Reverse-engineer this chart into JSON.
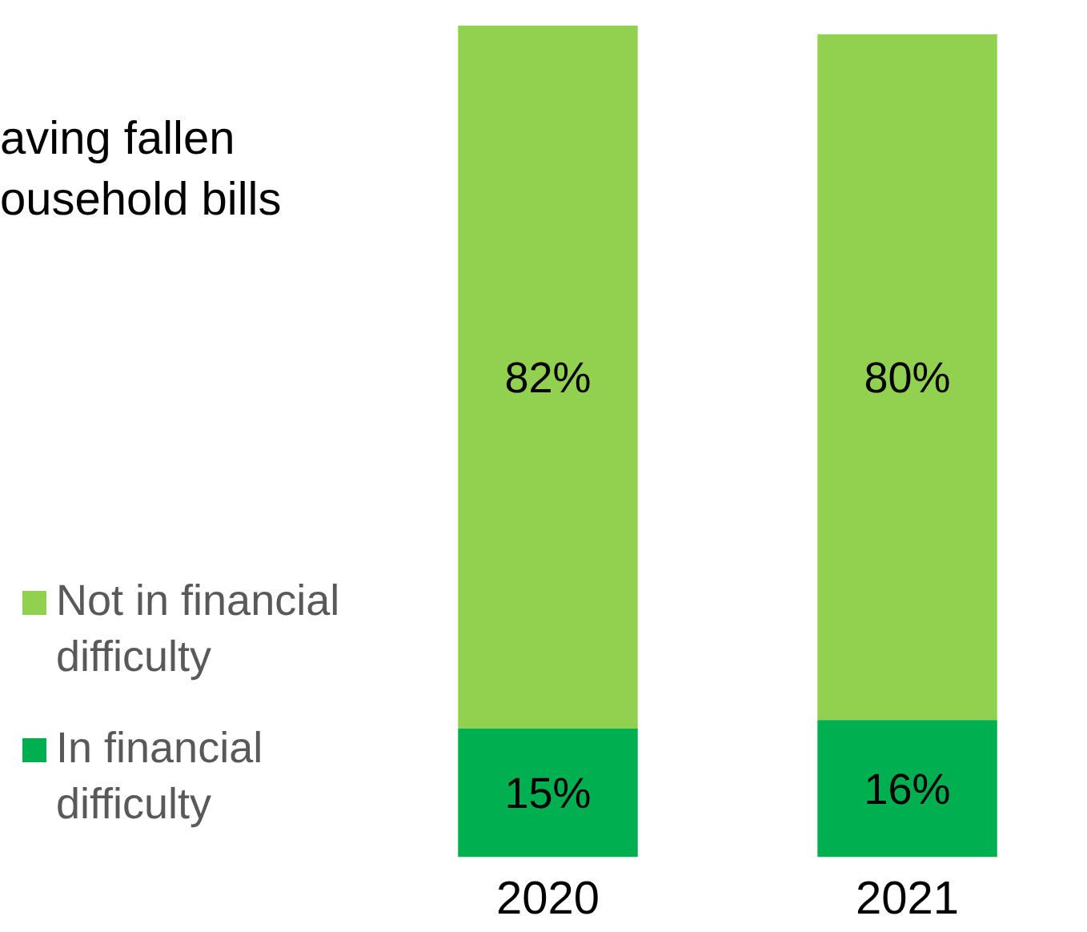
{
  "chart_data": {
    "type": "bar",
    "title": "aving fallen\nousehold bills",
    "categories": [
      "2020",
      "2021"
    ],
    "stacked": true,
    "legend": "left",
    "series": [
      {
        "name": "In financial difficulty",
        "color": "#00b050",
        "values": [
          15,
          16
        ],
        "value_labels": [
          "15%",
          "16%"
        ]
      },
      {
        "name": "Not in financial difficulty",
        "color": "#92d050",
        "values": [
          82,
          80
        ],
        "value_labels": [
          "82%",
          "80%"
        ]
      }
    ]
  }
}
